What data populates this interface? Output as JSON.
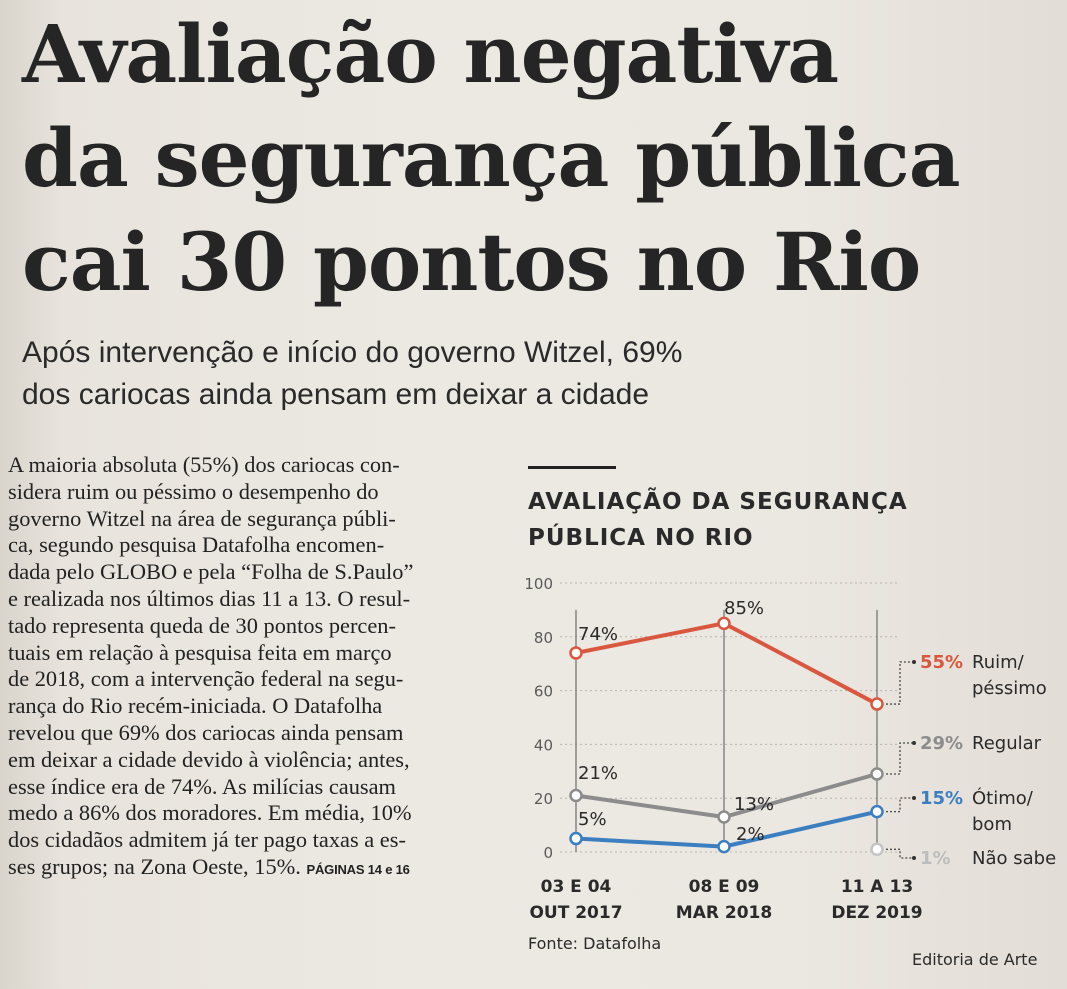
{
  "headline": {
    "lines": [
      "Avaliação negativa",
      "da segurança pública",
      "cai 30 pontos no Rio"
    ]
  },
  "subtitle": {
    "lines": [
      "Após intervenção e início do governo Witzel, 69%",
      "dos cariocas ainda pensam em deixar a cidade"
    ]
  },
  "article": {
    "lines": [
      "A maioria absoluta (55%) dos cariocas con-",
      "sidera ruim ou péssimo o desempenho do",
      "governo Witzel na área de segurança públi-",
      "ca, segundo pesquisa Datafolha encomen-",
      "dada pelo GLOBO e pela “Folha de S.Paulo”",
      "e realizada nos últimos dias 11 a 13. O resul-",
      "tado representa queda de 30 pontos percen-",
      "tuais em relação à pesquisa feita em março",
      "de 2018, com a intervenção federal na segu-",
      "rança do Rio recém-iniciada. O Datafolha",
      "revelou que 69% dos cariocas ainda pensam",
      "em deixar a cidade devido à violência; antes,",
      "esse índice era de 74%. As milícias causam",
      "medo a 86% dos moradores. Em média, 10%",
      "dos cidadãos admitem já ter pago taxas a es-",
      "ses grupos; na Zona Oeste, 15%."
    ],
    "pages_ref": "PÁGINAS 14 e 16"
  },
  "chart_title": {
    "lines": [
      "AVALIAÇÃO DA SEGURANÇA",
      "PÚBLICA NO RIO"
    ]
  },
  "chart_data": {
    "type": "line",
    "title": "AVALIAÇÃO DA SEGURANÇA PÚBLICA NO RIO",
    "ylim": [
      0,
      100
    ],
    "yticks": [
      "100",
      "80",
      "60",
      "40",
      "20",
      "0"
    ],
    "x_labels": [
      [
        "03 E 04",
        "OUT 2017"
      ],
      [
        "08 E 09",
        "MAR 2018"
      ],
      [
        "11 A 13",
        "DEZ 2019"
      ]
    ],
    "series": [
      {
        "name_lines": [
          "Ruim/",
          "péssimo"
        ],
        "color": "#d9573f",
        "values": [
          74,
          85,
          55
        ],
        "labels": [
          "74%",
          "85%",
          "55%"
        ]
      },
      {
        "name_lines": [
          "Regular"
        ],
        "color": "#8c8c8c",
        "values": [
          21,
          13,
          29
        ],
        "labels": [
          "21%",
          "13%",
          "29%"
        ]
      },
      {
        "name_lines": [
          "Ótimo/",
          "bom"
        ],
        "color": "#3b7fc0",
        "values": [
          5,
          2,
          15
        ],
        "labels": [
          "5%",
          "2%",
          "15%"
        ]
      },
      {
        "name_lines": [
          "Não sabe"
        ],
        "color": "#c4c4c4",
        "values": [
          null,
          null,
          1
        ],
        "labels": [
          "",
          "",
          "1%"
        ]
      }
    ],
    "grid": "dotted horizontal"
  },
  "source": "Fonte: Datafolha",
  "credit": "Editoria de Arte"
}
